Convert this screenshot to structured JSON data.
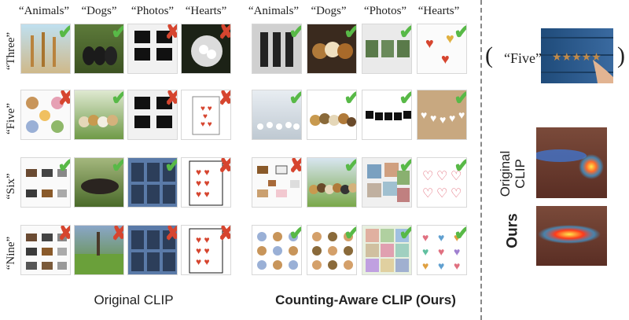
{
  "columns": [
    "“Animals”",
    "“Dogs”",
    "“Photos”",
    "“Hearts”"
  ],
  "rows": [
    "“Three”",
    "“Five”",
    "“Six”",
    "“Nine”"
  ],
  "captions": {
    "left": "Original CLIP",
    "right": "Counting-Aware CLIP (Ours)"
  },
  "query": {
    "open_paren": "(",
    "text": "“Five”,",
    "close_paren": ")"
  },
  "side": {
    "original": "Original\nCLIP",
    "ours": "Ours"
  },
  "original_marks": [
    [
      "check",
      "check",
      "cross",
      "cross"
    ],
    [
      "cross",
      "check",
      "cross",
      "cross"
    ],
    [
      "check",
      "check",
      "check",
      "cross"
    ],
    [
      "cross",
      "cross",
      "cross",
      "cross"
    ]
  ],
  "ours_marks": [
    [
      "check",
      "check",
      "check",
      "check"
    ],
    [
      "check",
      "check",
      "check",
      "check"
    ],
    [
      "cross",
      "check",
      "check",
      "check"
    ],
    [
      "check",
      "check",
      "check",
      "check"
    ]
  ],
  "colors": {
    "check": "#58b947",
    "cross": "#d6452f",
    "heatmap_hot": "#ffe94d",
    "board_blue": "#2e5a8a"
  },
  "glyphs": {
    "check": "✔",
    "cross": "✘",
    "star": "★"
  }
}
